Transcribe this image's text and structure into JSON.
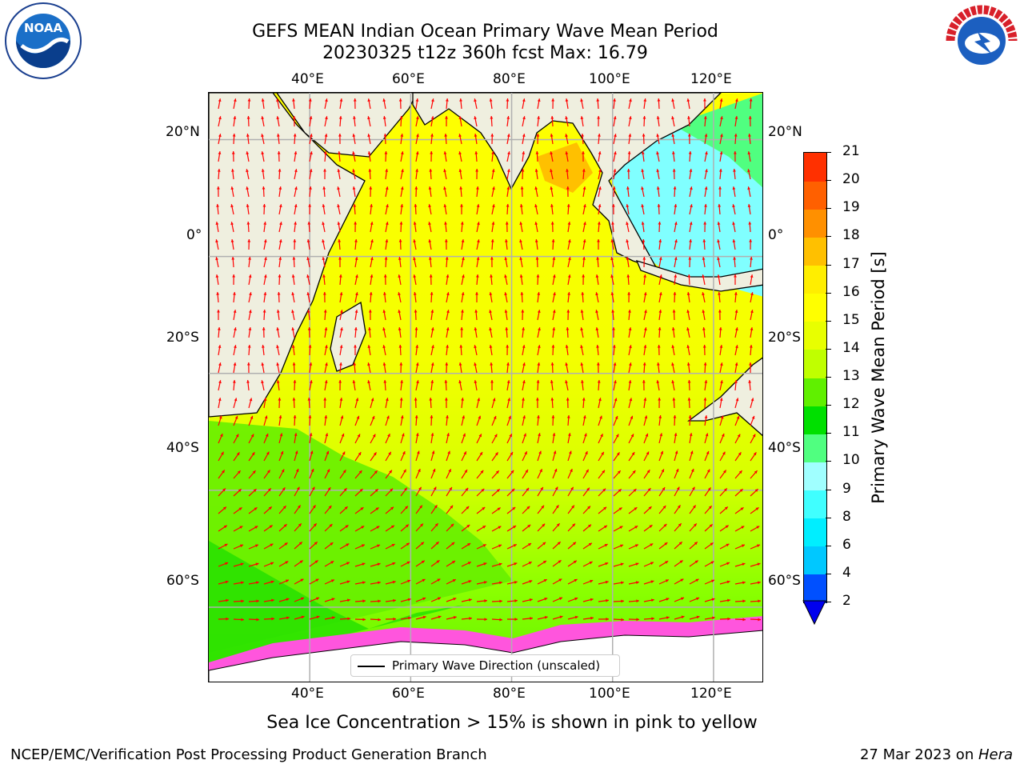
{
  "title_line1": "GEFS MEAN Indian Ocean Primary Wave Mean Period",
  "title_line2": "20230325 t12z 360h fcst   Max: 16.79",
  "logos": {
    "left": "noaa-logo",
    "right": "national-weather-service-logo"
  },
  "map": {
    "lon_labels": [
      "40°E",
      "60°E",
      "80°E",
      "100°E",
      "120°E"
    ],
    "lat_labels": [
      "20°N",
      "0°",
      "20°S",
      "40°S",
      "60°S"
    ],
    "lon_range": [
      20,
      130
    ],
    "lat_range": [
      -73,
      28
    ],
    "grid": true
  },
  "colorbar": {
    "title": "Primary Wave Mean Period [s]",
    "levels": [
      "2",
      "4",
      "6",
      "8",
      "9",
      "10",
      "11",
      "12",
      "13",
      "14",
      "15",
      "16",
      "17",
      "18",
      "19",
      "20",
      "21"
    ],
    "colors": [
      "#0050ff",
      "#00c8ff",
      "#00eeff",
      "#40ffff",
      "#a0ffff",
      "#50ff80",
      "#00e000",
      "#60f000",
      "#c0ff00",
      "#e8ff00",
      "#ffff00",
      "#ffee00",
      "#ffc000",
      "#ff9000",
      "#ff6000",
      "#ff3000",
      "#ff0000"
    ],
    "extend_low_color": "#0000ee"
  },
  "legend": {
    "label": "Primary Wave Direction (unscaled)"
  },
  "ice_note": "Sea Ice Concentration > 15% is shown in pink to yellow",
  "footer": {
    "left": "NCEP/EMC/Verification Post Processing Product Generation Branch",
    "right_prefix": "27 Mar 2023 on ",
    "right_host": "Hera"
  }
}
